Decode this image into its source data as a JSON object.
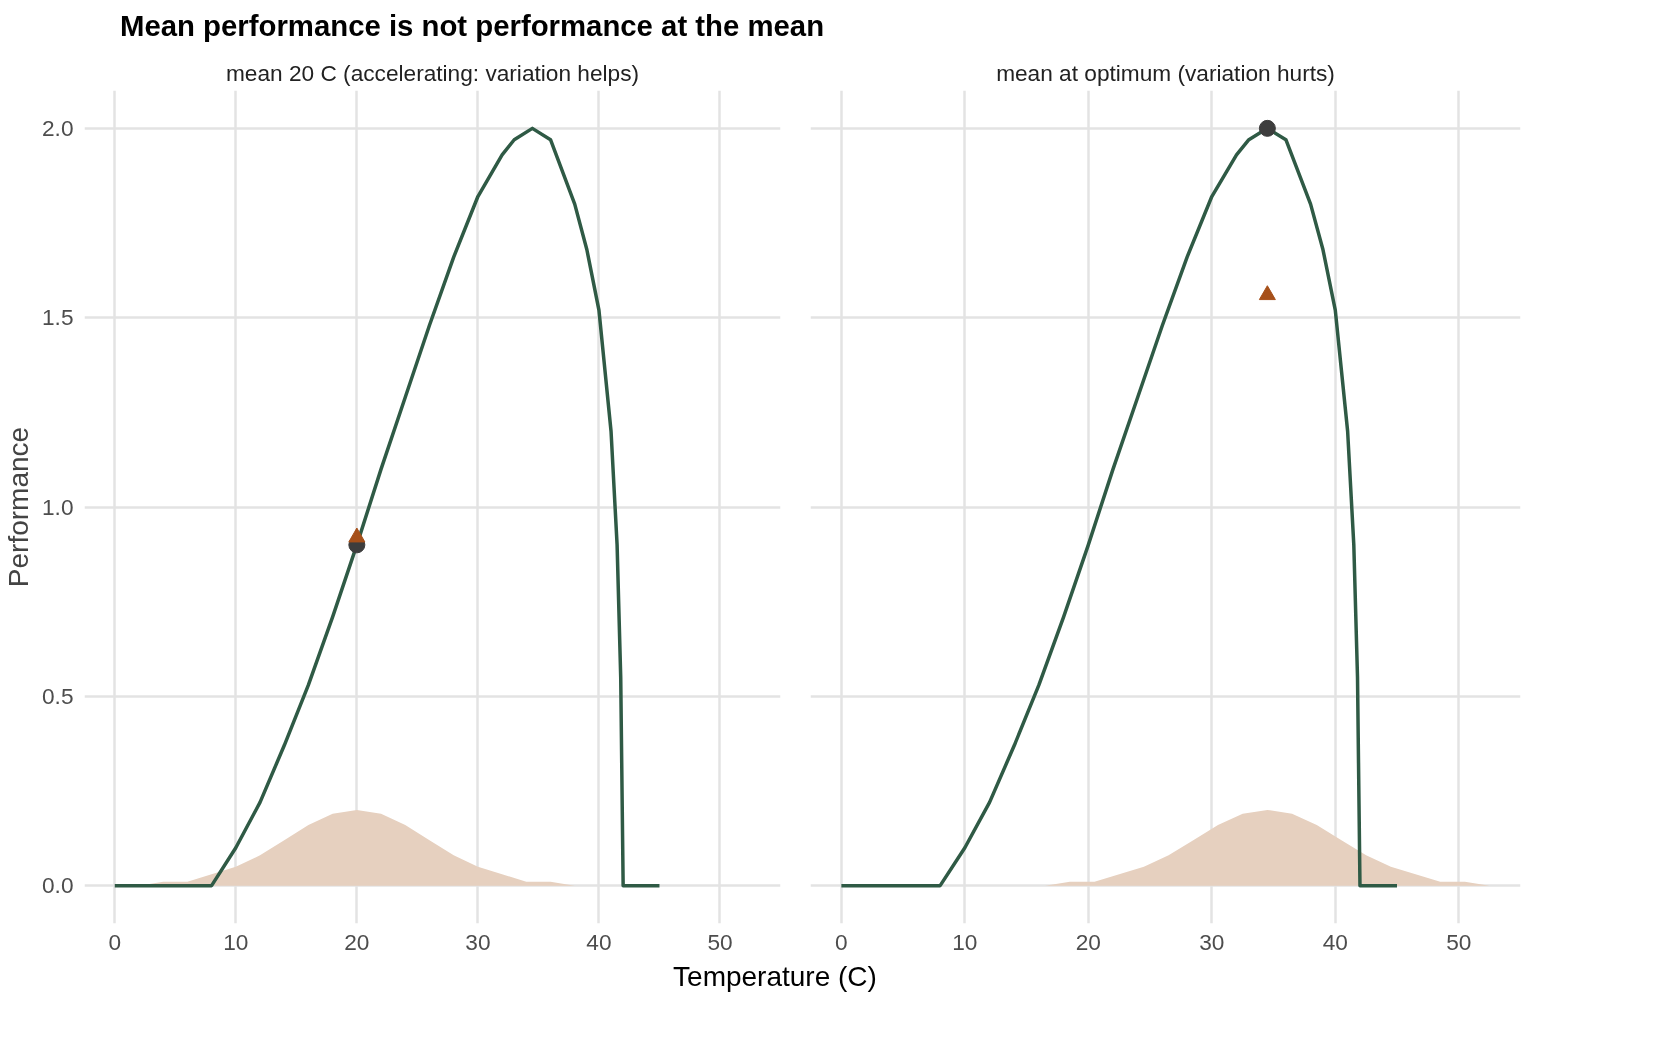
{
  "chart_data": [
    {
      "type": "line",
      "title": "Mean performance is not performance at the mean",
      "subtitle": "mean 20 C (accelerating: variation helps)",
      "xlabel": "Temperature (C)",
      "ylabel": "Performance",
      "xlim": [
        -2.5,
        55
      ],
      "ylim": [
        -0.1,
        2.1
      ],
      "xticks": [
        0,
        10,
        20,
        30,
        40,
        50
      ],
      "yticks": [
        {
          "value": 0,
          "label": "0.0"
        },
        {
          "value": 0.5,
          "label": "0.5"
        },
        {
          "value": 1,
          "label": "1.0"
        },
        {
          "value": 1.5,
          "label": "1.5"
        },
        {
          "value": 2,
          "label": "2.0"
        }
      ],
      "grid": true,
      "series": [
        {
          "type": "area",
          "color": "#e6d0bf",
          "x": [
            2,
            4,
            6,
            8,
            10,
            12,
            14,
            16,
            18,
            20,
            22,
            24,
            26,
            28,
            30,
            32,
            34,
            36,
            38
          ],
          "values": [
            0.0,
            0.01,
            0.01,
            0.03,
            0.05,
            0.08,
            0.12,
            0.16,
            0.19,
            0.2,
            0.19,
            0.16,
            0.12,
            0.08,
            0.05,
            0.03,
            0.01,
            0.01,
            0.0
          ]
        },
        {
          "color": "#2f5a45",
          "x": [
            0,
            8,
            10,
            12,
            14,
            16,
            18,
            20,
            22,
            24,
            26,
            28,
            30,
            32,
            33,
            34.5,
            36,
            38,
            39,
            40,
            41,
            41.5,
            41.8,
            42,
            45
          ],
          "values": [
            0,
            0,
            0.1,
            0.22,
            0.37,
            0.53,
            0.71,
            0.9,
            1.1,
            1.29,
            1.48,
            1.66,
            1.82,
            1.93,
            1.97,
            2.0,
            1.97,
            1.8,
            1.68,
            1.52,
            1.2,
            0.9,
            0.55,
            0,
            0
          ]
        },
        {
          "type": "scatter",
          "marker": "circle",
          "color": "#3d3d3d",
          "x": [
            20
          ],
          "values": [
            0.9
          ]
        },
        {
          "type": "scatter",
          "marker": "triangle",
          "color": "#a6501a",
          "x": [
            20
          ],
          "values": [
            0.92
          ]
        }
      ]
    },
    {
      "type": "line",
      "subtitle": "mean at optimum (variation hurts)",
      "tick_labels": "x",
      "xlim": [
        -2.5,
        55
      ],
      "ylim": [
        -0.1,
        2.1
      ],
      "xticks": [
        0,
        10,
        20,
        30,
        40,
        50
      ],
      "yticks": [
        0,
        0.5,
        1,
        1.5,
        2
      ],
      "grid": true,
      "series": [
        {
          "type": "area",
          "color": "#e6d0bf",
          "x": [
            16.5,
            18.5,
            20.5,
            22.5,
            24.5,
            26.5,
            28.5,
            30.5,
            32.5,
            34.5,
            36.5,
            38.5,
            40.5,
            42.5,
            44.5,
            46.5,
            48.5,
            50.5,
            52.5
          ],
          "values": [
            0.0,
            0.01,
            0.01,
            0.03,
            0.05,
            0.08,
            0.12,
            0.16,
            0.19,
            0.2,
            0.19,
            0.16,
            0.12,
            0.08,
            0.05,
            0.03,
            0.01,
            0.01,
            0.0
          ]
        },
        {
          "color": "#2f5a45",
          "x": [
            0,
            8,
            10,
            12,
            14,
            16,
            18,
            20,
            22,
            24,
            26,
            28,
            30,
            32,
            33,
            34.5,
            36,
            38,
            39,
            40,
            41,
            41.5,
            41.8,
            42,
            45
          ],
          "values": [
            0,
            0,
            0.1,
            0.22,
            0.37,
            0.53,
            0.71,
            0.9,
            1.1,
            1.29,
            1.48,
            1.66,
            1.82,
            1.93,
            1.97,
            2.0,
            1.97,
            1.8,
            1.68,
            1.52,
            1.2,
            0.9,
            0.55,
            0,
            0
          ]
        },
        {
          "type": "scatter",
          "marker": "circle",
          "color": "#3d3d3d",
          "x": [
            34.5
          ],
          "values": [
            2.0
          ]
        },
        {
          "type": "scatter",
          "marker": "triangle",
          "color": "#a6501a",
          "x": [
            34.5
          ],
          "values": [
            1.56
          ]
        }
      ]
    }
  ]
}
